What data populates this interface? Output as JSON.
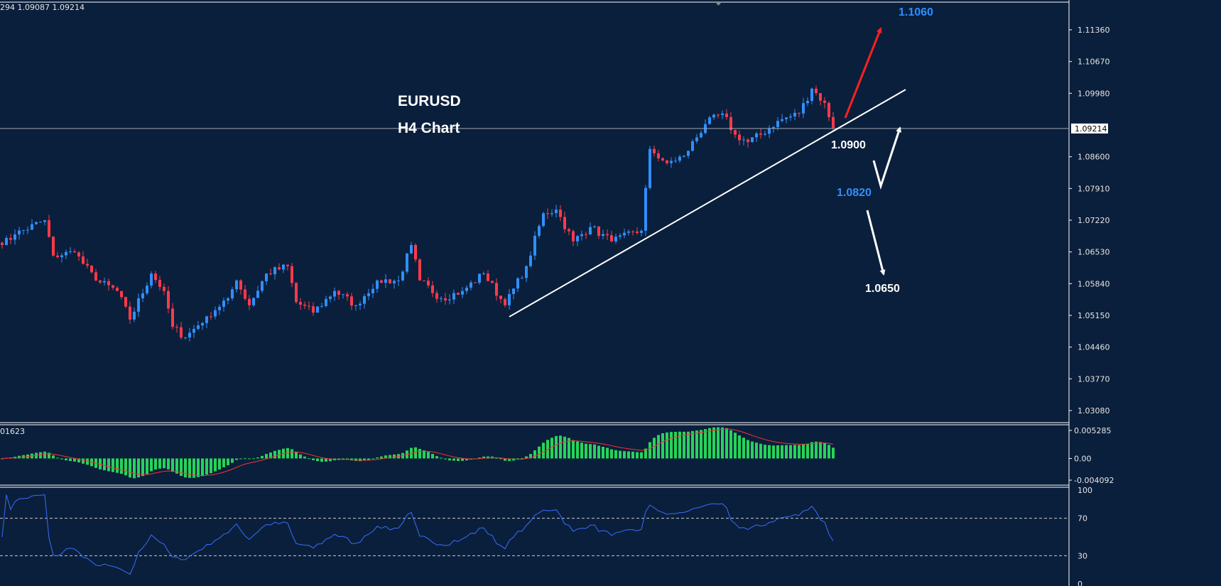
{
  "header": {
    "ohlc_text": "294 1.09087 1.09214",
    "macd_text": "01623"
  },
  "colors": {
    "bg": "#0a1f3b",
    "bull": "#2f8fff",
    "bear": "#ff3a4a",
    "hist": "#27d35a",
    "signal": "#ff3030",
    "rsi": "#3a6cff",
    "blue_label": "#2f8fff",
    "red_arrow": "#ff2020"
  },
  "annotations": {
    "symbol": "EURUSD",
    "timeframe": "H4 Chart",
    "target_up": "1.1060",
    "level_support": "1.0900",
    "level_mid": "1.0820",
    "target_down": "1.0650"
  },
  "chart_data": {
    "type": "candlestick",
    "title": "EURUSD H4 Chart",
    "current_price": "1.09214",
    "ylim": [
      1.0308,
      1.1136
    ],
    "yticks": [
      "1.11360",
      "1.10670",
      "1.09980",
      "1.08600",
      "1.07910",
      "1.07220",
      "1.06530",
      "1.05840",
      "1.05150",
      "1.04460",
      "1.03770",
      "1.03080"
    ],
    "close_waypoints": [
      [
        0,
        1.0668
      ],
      [
        3,
        1.0691
      ],
      [
        10,
        1.0722
      ],
      [
        12,
        1.0645
      ],
      [
        17,
        1.0652
      ],
      [
        22,
        1.0591
      ],
      [
        27,
        1.0568
      ],
      [
        30,
        1.0506
      ],
      [
        35,
        1.0606
      ],
      [
        38,
        1.0568
      ],
      [
        40,
        1.049
      ],
      [
        43,
        1.0467
      ],
      [
        48,
        1.0513
      ],
      [
        53,
        1.0552
      ],
      [
        55,
        1.0591
      ],
      [
        58,
        1.0537
      ],
      [
        62,
        1.0606
      ],
      [
        67,
        1.0622
      ],
      [
        69,
        1.0544
      ],
      [
        73,
        1.0521
      ],
      [
        78,
        1.0568
      ],
      [
        83,
        1.0537
      ],
      [
        88,
        1.0591
      ],
      [
        93,
        1.0591
      ],
      [
        96,
        1.0668
      ],
      [
        98,
        1.0591
      ],
      [
        103,
        1.0552
      ],
      [
        108,
        1.0568
      ],
      [
        113,
        1.0606
      ],
      [
        118,
        1.0537
      ],
      [
        123,
        1.0622
      ],
      [
        127,
        1.0737
      ],
      [
        130,
        1.0745
      ],
      [
        134,
        1.0676
      ],
      [
        138,
        1.0707
      ],
      [
        143,
        1.0676
      ],
      [
        150,
        1.0699
      ],
      [
        152,
        1.0877
      ],
      [
        156,
        1.0846
      ],
      [
        160,
        1.0862
      ],
      [
        165,
        1.0931
      ],
      [
        169,
        1.0954
      ],
      [
        172,
        1.0908
      ],
      [
        175,
        1.0892
      ],
      [
        178,
        1.0908
      ],
      [
        182,
        1.0938
      ],
      [
        187,
        1.0954
      ],
      [
        190,
        1.1008
      ],
      [
        193,
        1.0977
      ],
      [
        195,
        1.0923
      ]
    ],
    "trendline": [
      [
        1.0512,
        119
      ],
      [
        1.1006,
        212
      ]
    ],
    "macd": {
      "axis_labels": [
        "0.005285",
        "0.00",
        "-0.004092"
      ],
      "range": [
        -0.004092,
        0.005285
      ]
    },
    "rsi": {
      "axis_labels": [
        "100",
        "70",
        "30",
        "0"
      ],
      "levels": [
        70,
        30
      ]
    }
  }
}
